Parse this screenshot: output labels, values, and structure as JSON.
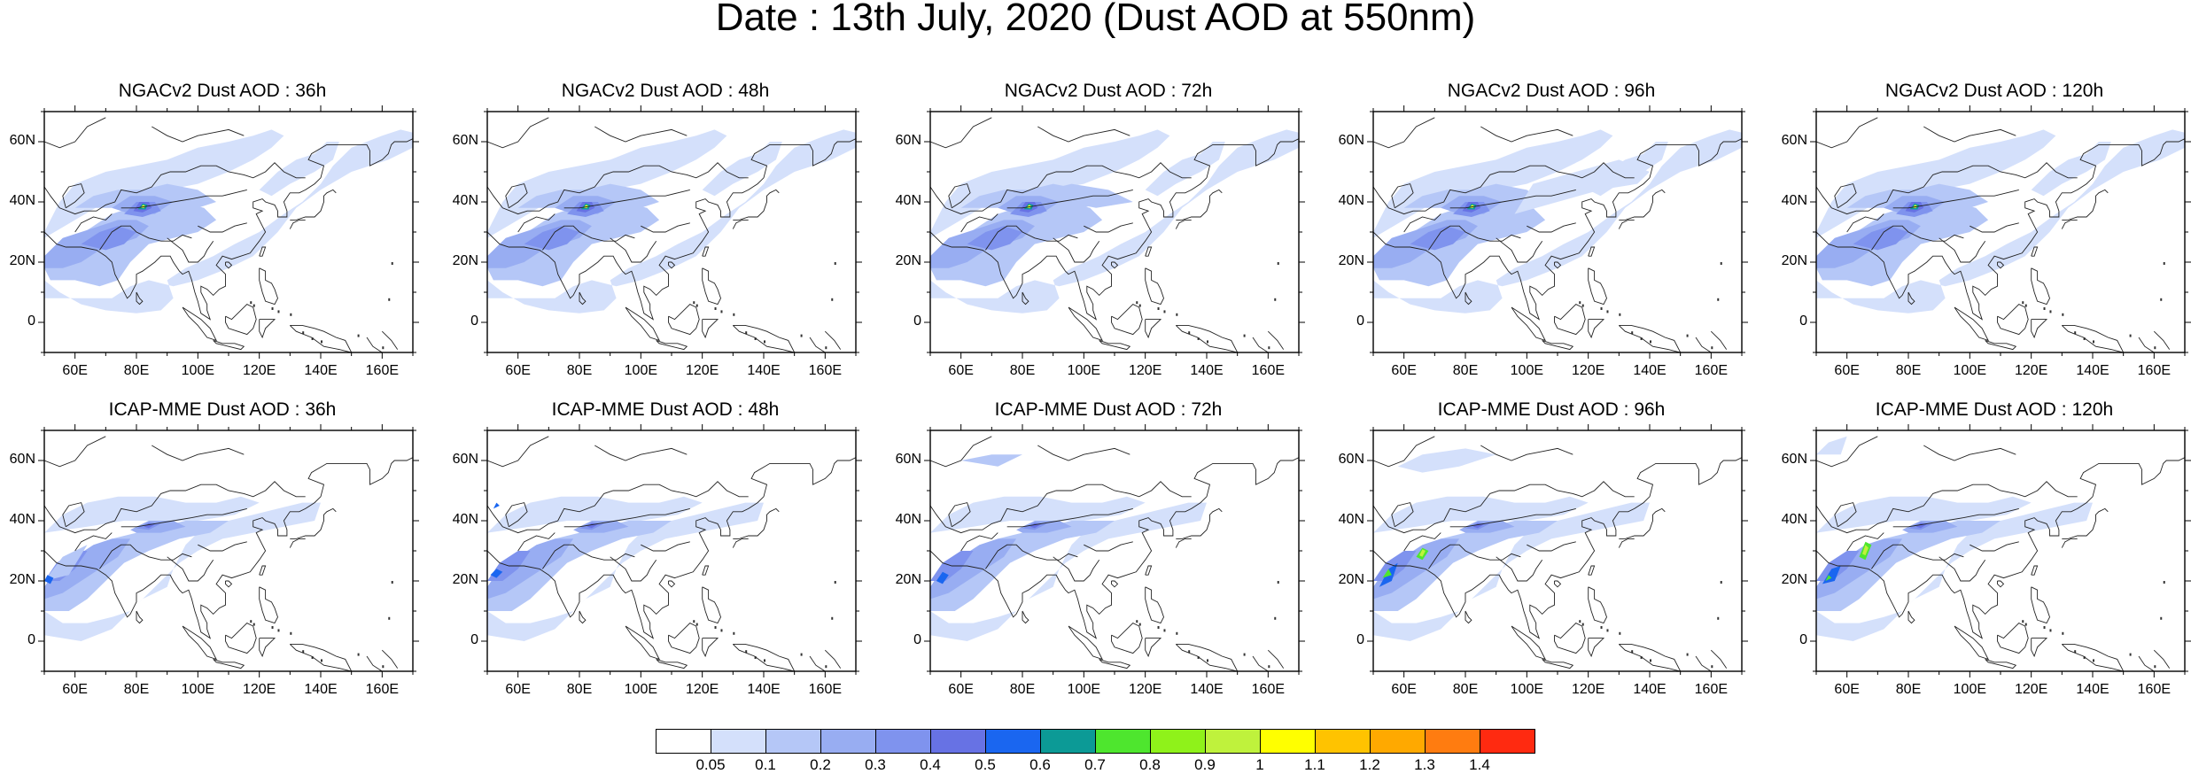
{
  "figure": {
    "title": "Date : 13th July, 2020 (Dust AOD at 550nm)"
  },
  "panels": [
    {
      "title": "NGACv2 Dust AOD : 36h",
      "model": "ngac"
    },
    {
      "title": "NGACv2 Dust AOD : 48h",
      "model": "ngac"
    },
    {
      "title": "NGACv2 Dust AOD : 72h",
      "model": "ngac"
    },
    {
      "title": "NGACv2 Dust AOD : 96h",
      "model": "ngac"
    },
    {
      "title": "NGACv2 Dust AOD : 120h",
      "model": "ngac"
    },
    {
      "title": "ICAP-MME Dust AOD : 36h",
      "model": "icap"
    },
    {
      "title": "ICAP-MME Dust AOD : 48h",
      "model": "icap"
    },
    {
      "title": "ICAP-MME Dust AOD : 72h",
      "model": "icap"
    },
    {
      "title": "ICAP-MME Dust AOD : 96h",
      "model": "icap"
    },
    {
      "title": "ICAP-MME Dust AOD : 120h",
      "model": "icap"
    }
  ],
  "axes": {
    "lat_ticks": [
      "60N",
      "40N",
      "20N",
      "0"
    ],
    "lat_values": [
      60,
      40,
      20,
      0
    ],
    "lon_ticks": [
      "60E",
      "80E",
      "100E",
      "120E",
      "140E",
      "160E"
    ],
    "lon_values": [
      60,
      80,
      100,
      120,
      140,
      160
    ],
    "lon_range": [
      50,
      170
    ],
    "lat_range": [
      -10,
      70
    ]
  },
  "colorbar": {
    "labels": [
      "0.05",
      "0.1",
      "0.2",
      "0.3",
      "0.4",
      "0.5",
      "0.6",
      "0.7",
      "0.8",
      "0.9",
      "1",
      "1.1",
      "1.2",
      "1.3",
      "1.4"
    ],
    "colors": [
      "#ffffff",
      "#d4e0fb",
      "#b5c7f7",
      "#98adf2",
      "#7f93ee",
      "#6772e4",
      "#1a66f0",
      "#0c9a96",
      "#4ee62e",
      "#8ff21a",
      "#bff23c",
      "#ffff00",
      "#ffc300",
      "#ffa900",
      "#ff7c10",
      "#ff2a10"
    ]
  }
}
